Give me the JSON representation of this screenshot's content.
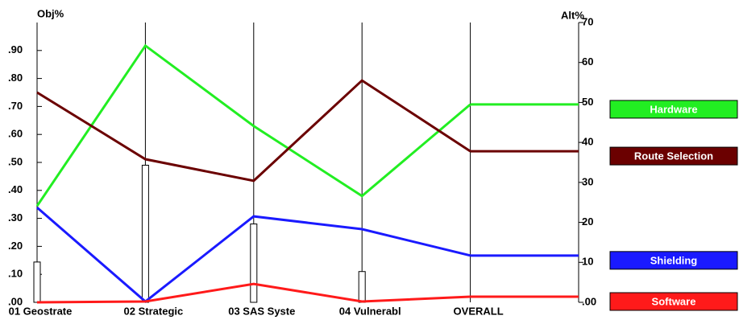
{
  "chart_data": {
    "type": "line",
    "y_axis_label": "Obj%",
    "y2_axis_label": "Alt%",
    "categories": [
      "01 Geostrate",
      "02 Strategic",
      "03 SAS Syste",
      "04 Vulnerabl",
      "OVERALL"
    ],
    "ylim": [
      0,
      1
    ],
    "yticks": [
      {
        "value": 0,
        "label": ".00"
      },
      {
        "value": 0.1,
        "label": ".10"
      },
      {
        "value": 0.2,
        "label": ".20"
      },
      {
        "value": 0.3,
        "label": ".30"
      },
      {
        "value": 0.4,
        "label": ".40"
      },
      {
        "value": 0.5,
        "label": ".50"
      },
      {
        "value": 0.6,
        "label": ".60"
      },
      {
        "value": 0.7,
        "label": ".70"
      },
      {
        "value": 0.8,
        "label": ".80"
      },
      {
        "value": 0.9,
        "label": ".90"
      }
    ],
    "y2lim": [
      0,
      70
    ],
    "y2ticks": [
      {
        "value": 0,
        "label": ".00"
      },
      10,
      20,
      30,
      40,
      50,
      60,
      70
    ],
    "bars": {
      "values": [
        0.144,
        0.49,
        0.28,
        0.11,
        null
      ],
      "color": "#ffffff"
    },
    "series": [
      {
        "name": "Hardware",
        "color": "#22ee22",
        "axis": "y2",
        "values": [
          24.1,
          64.2,
          44.1,
          26.6,
          49.5
        ]
      },
      {
        "name": "Route Selection",
        "color": "#6b0000",
        "axis": "y2",
        "values": [
          52.5,
          35.8,
          30.4,
          55.5,
          37.8
        ]
      },
      {
        "name": "Shielding",
        "color": "#1a1aff",
        "axis": "y2",
        "values": [
          23.7,
          0.2,
          21.5,
          18.3,
          11.7
        ]
      },
      {
        "name": "Software",
        "color": "#ff1a1a",
        "axis": "y2",
        "values": [
          0,
          0.2,
          4.6,
          0.2,
          1.4
        ]
      }
    ]
  }
}
